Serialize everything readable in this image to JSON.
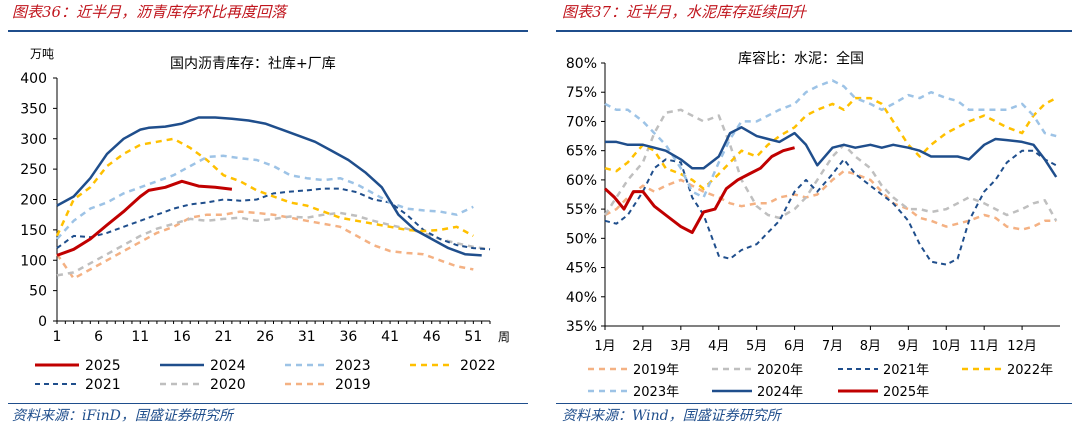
{
  "left": {
    "header": "图表36：近半月，沥青库存环比再度回落",
    "footer": "资料来源：iFinD，国盛证券研究所",
    "chart_data": {
      "type": "line",
      "title": "国内沥青库存：社库+厂库",
      "ylabel": "万吨",
      "xlabel": "周",
      "ylim": [
        0,
        400
      ],
      "xlim": [
        1,
        53
      ],
      "y_ticks": [
        "0",
        "50",
        "100",
        "150",
        "200",
        "250",
        "300",
        "350",
        "400"
      ],
      "x_ticks": [
        "1",
        "6",
        "11",
        "16",
        "21",
        "26",
        "31",
        "36",
        "41",
        "46",
        "51"
      ],
      "legend_position": "bottom",
      "series": [
        {
          "name": "2025",
          "color": "#c00000",
          "dash": "solid",
          "width": 3,
          "x": [
            1,
            3,
            5,
            7,
            9,
            11,
            12,
            14,
            16,
            18,
            20,
            22
          ],
          "y": [
            108,
            118,
            135,
            158,
            180,
            205,
            215,
            220,
            230,
            222,
            220,
            217
          ]
        },
        {
          "name": "2024",
          "color": "#1f4e8c",
          "dash": "solid",
          "width": 2.5,
          "x": [
            1,
            3,
            5,
            7,
            9,
            11,
            12,
            14,
            16,
            18,
            20,
            22,
            24,
            26,
            28,
            30,
            32,
            34,
            36,
            38,
            40,
            42,
            44,
            46,
            48,
            50,
            52
          ],
          "y": [
            190,
            205,
            235,
            275,
            300,
            315,
            318,
            320,
            325,
            335,
            335,
            333,
            330,
            325,
            315,
            305,
            295,
            280,
            265,
            245,
            220,
            175,
            150,
            135,
            120,
            110,
            108
          ]
        },
        {
          "name": "2023",
          "color": "#9dc3e6",
          "dash": "6,5",
          "width": 2.5,
          "x": [
            1,
            3,
            5,
            7,
            9,
            11,
            13,
            15,
            17,
            19,
            21,
            23,
            25,
            27,
            29,
            31,
            33,
            35,
            37,
            39,
            41,
            43,
            45,
            47,
            49,
            51
          ],
          "y": [
            135,
            165,
            185,
            195,
            210,
            220,
            230,
            240,
            255,
            270,
            272,
            268,
            265,
            255,
            240,
            235,
            232,
            235,
            225,
            210,
            195,
            185,
            182,
            180,
            175,
            188
          ]
        },
        {
          "name": "2022",
          "color": "#ffc000",
          "dash": "6,5",
          "width": 2.5,
          "x": [
            1,
            3,
            5,
            7,
            9,
            11,
            13,
            15,
            17,
            19,
            21,
            23,
            25,
            27,
            29,
            31,
            33,
            35,
            37,
            39,
            41,
            43,
            45,
            47,
            49,
            51
          ],
          "y": [
            140,
            200,
            220,
            255,
            275,
            290,
            295,
            300,
            285,
            265,
            240,
            230,
            215,
            205,
            195,
            190,
            180,
            170,
            165,
            160,
            155,
            150,
            148,
            150,
            155,
            140
          ]
        },
        {
          "name": "2021",
          "color": "#1f4e8c",
          "dash": "5,4",
          "width": 2,
          "x": [
            1,
            3,
            5,
            7,
            9,
            11,
            13,
            15,
            17,
            19,
            21,
            23,
            25,
            27,
            29,
            31,
            33,
            35,
            37,
            39,
            41,
            43,
            45,
            47,
            49,
            51,
            53
          ],
          "y": [
            120,
            140,
            138,
            145,
            155,
            165,
            175,
            185,
            192,
            195,
            200,
            198,
            200,
            210,
            213,
            215,
            218,
            218,
            212,
            200,
            195,
            175,
            150,
            135,
            125,
            120,
            118
          ]
        },
        {
          "name": "2020",
          "color": "#bfbfbf",
          "dash": "6,5",
          "width": 2.5,
          "x": [
            1,
            3,
            5,
            7,
            9,
            11,
            13,
            15,
            17,
            19,
            21,
            23,
            25,
            27,
            29,
            31,
            33,
            35,
            37,
            39,
            41,
            43,
            45,
            47,
            49,
            51,
            53
          ],
          "y": [
            75,
            80,
            95,
            110,
            125,
            140,
            152,
            160,
            168,
            165,
            168,
            170,
            165,
            168,
            172,
            170,
            175,
            178,
            173,
            165,
            158,
            152,
            145,
            135,
            128,
            122,
            118
          ]
        },
        {
          "name": "2019",
          "color": "#f4b183",
          "dash": "6,5",
          "width": 2.5,
          "x": [
            1,
            3,
            5,
            7,
            9,
            11,
            13,
            15,
            17,
            19,
            21,
            23,
            25,
            27,
            29,
            31,
            33,
            35,
            37,
            39,
            41,
            43,
            45,
            47,
            49,
            51
          ],
          "y": [
            110,
            70,
            85,
            100,
            115,
            130,
            145,
            155,
            170,
            175,
            175,
            180,
            178,
            175,
            170,
            165,
            160,
            155,
            140,
            125,
            115,
            112,
            110,
            100,
            90,
            85
          ]
        }
      ]
    }
  },
  "right": {
    "header": "图表37：近半月，水泥库存延续回升",
    "footer": "资料来源：Wind，国盛证券研究所",
    "chart_data": {
      "type": "line",
      "title": "库容比：水泥：全国",
      "ylim": [
        35,
        80
      ],
      "xlim": [
        1,
        13
      ],
      "y_ticks": [
        "35%",
        "40%",
        "45%",
        "50%",
        "55%",
        "60%",
        "65%",
        "70%",
        "75%",
        "80%"
      ],
      "x_ticks": [
        "1月",
        "2月",
        "3月",
        "4月",
        "5月",
        "6月",
        "7月",
        "8月",
        "9月",
        "10月",
        "11月",
        "12月"
      ],
      "legend_position": "bottom",
      "series": [
        {
          "name": "2019年",
          "color": "#f4b183",
          "dash": "6,5",
          "width": 2.5,
          "x": [
            1,
            1.3,
            1.6,
            2,
            2.3,
            2.6,
            3,
            3.3,
            3.6,
            4,
            4.3,
            4.6,
            5,
            5.3,
            5.6,
            6,
            6.3,
            6.6,
            7,
            7.3,
            7.6,
            8,
            8.3,
            8.6,
            9,
            9.3,
            9.6,
            10,
            10.3,
            10.6,
            11,
            11.3,
            11.6,
            12,
            12.3,
            12.6,
            12.9
          ],
          "y": [
            54,
            55,
            57,
            59,
            58,
            59,
            60,
            59,
            58,
            57,
            56,
            55.5,
            56,
            56,
            57,
            57.5,
            57,
            57.5,
            60,
            61.5,
            61,
            60,
            58,
            56,
            55,
            53.5,
            53,
            52,
            52.5,
            53,
            54,
            53.5,
            52,
            51.5,
            52,
            53,
            53
          ]
        },
        {
          "name": "2020年",
          "color": "#bfbfbf",
          "dash": "6,5",
          "width": 2.5,
          "x": [
            1,
            1.3,
            1.6,
            2,
            2.3,
            2.6,
            3,
            3.3,
            3.6,
            4,
            4.3,
            4.6,
            5,
            5.3,
            5.6,
            6,
            6.3,
            6.6,
            7,
            7.3,
            7.6,
            8,
            8.3,
            8.6,
            9,
            9.3,
            9.6,
            10,
            10.3,
            10.6,
            11,
            11.3,
            11.6,
            12,
            12.3,
            12.6,
            12.9
          ],
          "y": [
            54,
            57,
            60,
            63,
            68,
            71.5,
            72,
            71,
            70,
            71,
            66,
            60,
            55.5,
            54,
            53.5,
            55,
            57,
            60,
            64,
            66,
            64,
            62,
            59,
            57,
            55,
            55,
            54.5,
            55,
            56,
            57,
            56,
            55,
            54,
            55,
            56,
            56.5,
            53
          ]
        },
        {
          "name": "2021年",
          "color": "#1f4e8c",
          "dash": "5,4",
          "width": 2,
          "x": [
            1,
            1.3,
            1.6,
            2,
            2.3,
            2.6,
            3,
            3.3,
            3.6,
            4,
            4.3,
            4.6,
            5,
            5.3,
            5.6,
            6,
            6.3,
            6.6,
            7,
            7.3,
            7.6,
            8,
            8.3,
            8.6,
            9,
            9.3,
            9.6,
            10,
            10.3,
            10.6,
            11,
            11.3,
            11.6,
            12,
            12.3,
            12.6,
            12.9
          ],
          "y": [
            53,
            52.5,
            54,
            58,
            62,
            63.5,
            63,
            57,
            54,
            47,
            46.5,
            48,
            49,
            51,
            53,
            58,
            60,
            58,
            61,
            63.5,
            61,
            59,
            57.5,
            56,
            53,
            49,
            46,
            45.5,
            46.5,
            53,
            58,
            60,
            63,
            65,
            65,
            63.5,
            62.5
          ]
        },
        {
          "name": "2022年",
          "color": "#ffc000",
          "dash": "6,5",
          "width": 2.5,
          "x": [
            1,
            1.3,
            1.6,
            2,
            2.3,
            2.6,
            3,
            3.3,
            3.6,
            4,
            4.3,
            4.6,
            5,
            5.3,
            5.6,
            6,
            6.3,
            6.6,
            7,
            7.3,
            7.6,
            8,
            8.3,
            8.6,
            9,
            9.3,
            9.6,
            10,
            10.3,
            10.6,
            11,
            11.3,
            11.6,
            12,
            12.3,
            12.6,
            12.9
          ],
          "y": [
            62,
            61.5,
            63,
            66,
            65,
            62,
            61,
            60,
            58.5,
            61,
            63,
            65,
            64,
            66,
            67.5,
            69,
            71,
            72,
            73,
            72,
            74,
            74,
            73,
            70,
            66,
            64,
            66,
            68,
            69,
            70,
            71,
            70,
            69,
            68,
            71,
            73,
            74
          ]
        },
        {
          "name": "2023年",
          "color": "#9dc3e6",
          "dash": "6,5",
          "width": 2.5,
          "x": [
            1,
            1.3,
            1.6,
            2,
            2.3,
            2.6,
            3,
            3.3,
            3.6,
            4,
            4.3,
            4.6,
            5,
            5.3,
            5.6,
            6,
            6.3,
            6.6,
            7,
            7.3,
            7.6,
            8,
            8.3,
            8.6,
            9,
            9.3,
            9.6,
            10,
            10.3,
            10.6,
            11,
            11.3,
            11.6,
            12,
            12.3,
            12.6,
            12.9
          ],
          "y": [
            73,
            72,
            72,
            70,
            68,
            66,
            62,
            58,
            57,
            63,
            67,
            70,
            70,
            71,
            72,
            73,
            75,
            76,
            77,
            76,
            74,
            73,
            72,
            73,
            74.5,
            74,
            75,
            74,
            73.5,
            72,
            72,
            72,
            72,
            73,
            71,
            68,
            67.5
          ]
        },
        {
          "name": "2024年",
          "color": "#1f4e8c",
          "dash": "solid",
          "width": 2.5,
          "x": [
            1,
            1.3,
            1.6,
            2,
            2.3,
            2.6,
            3,
            3.3,
            3.6,
            4,
            4.3,
            4.6,
            5,
            5.3,
            5.6,
            6,
            6.3,
            6.6,
            7,
            7.3,
            7.6,
            8,
            8.3,
            8.6,
            9,
            9.3,
            9.6,
            10,
            10.3,
            10.6,
            11,
            11.3,
            11.6,
            12,
            12.3,
            12.6,
            12.9
          ],
          "y": [
            66.5,
            66.5,
            66,
            66,
            65.5,
            65,
            63.5,
            62,
            62,
            64,
            68,
            69,
            67.5,
            67,
            66.5,
            68,
            66,
            62.5,
            65.5,
            66,
            65.5,
            66,
            65.5,
            66,
            65.5,
            65,
            64,
            64,
            64,
            63.5,
            66,
            67,
            66.8,
            66.5,
            66,
            63.5,
            60.5
          ]
        },
        {
          "name": "2025年",
          "color": "#c00000",
          "dash": "solid",
          "width": 3,
          "x": [
            1,
            1.25,
            1.5,
            1.75,
            2,
            2.3,
            2.6,
            3,
            3.3,
            3.6,
            3.9,
            4.2,
            4.5,
            4.8,
            5.1,
            5.4,
            5.7,
            6
          ],
          "y": [
            58.5,
            57,
            55,
            58,
            58,
            55.5,
            54,
            52,
            51,
            54.5,
            55,
            58.5,
            60,
            61,
            62,
            64,
            65,
            65.5
          ]
        }
      ]
    }
  }
}
